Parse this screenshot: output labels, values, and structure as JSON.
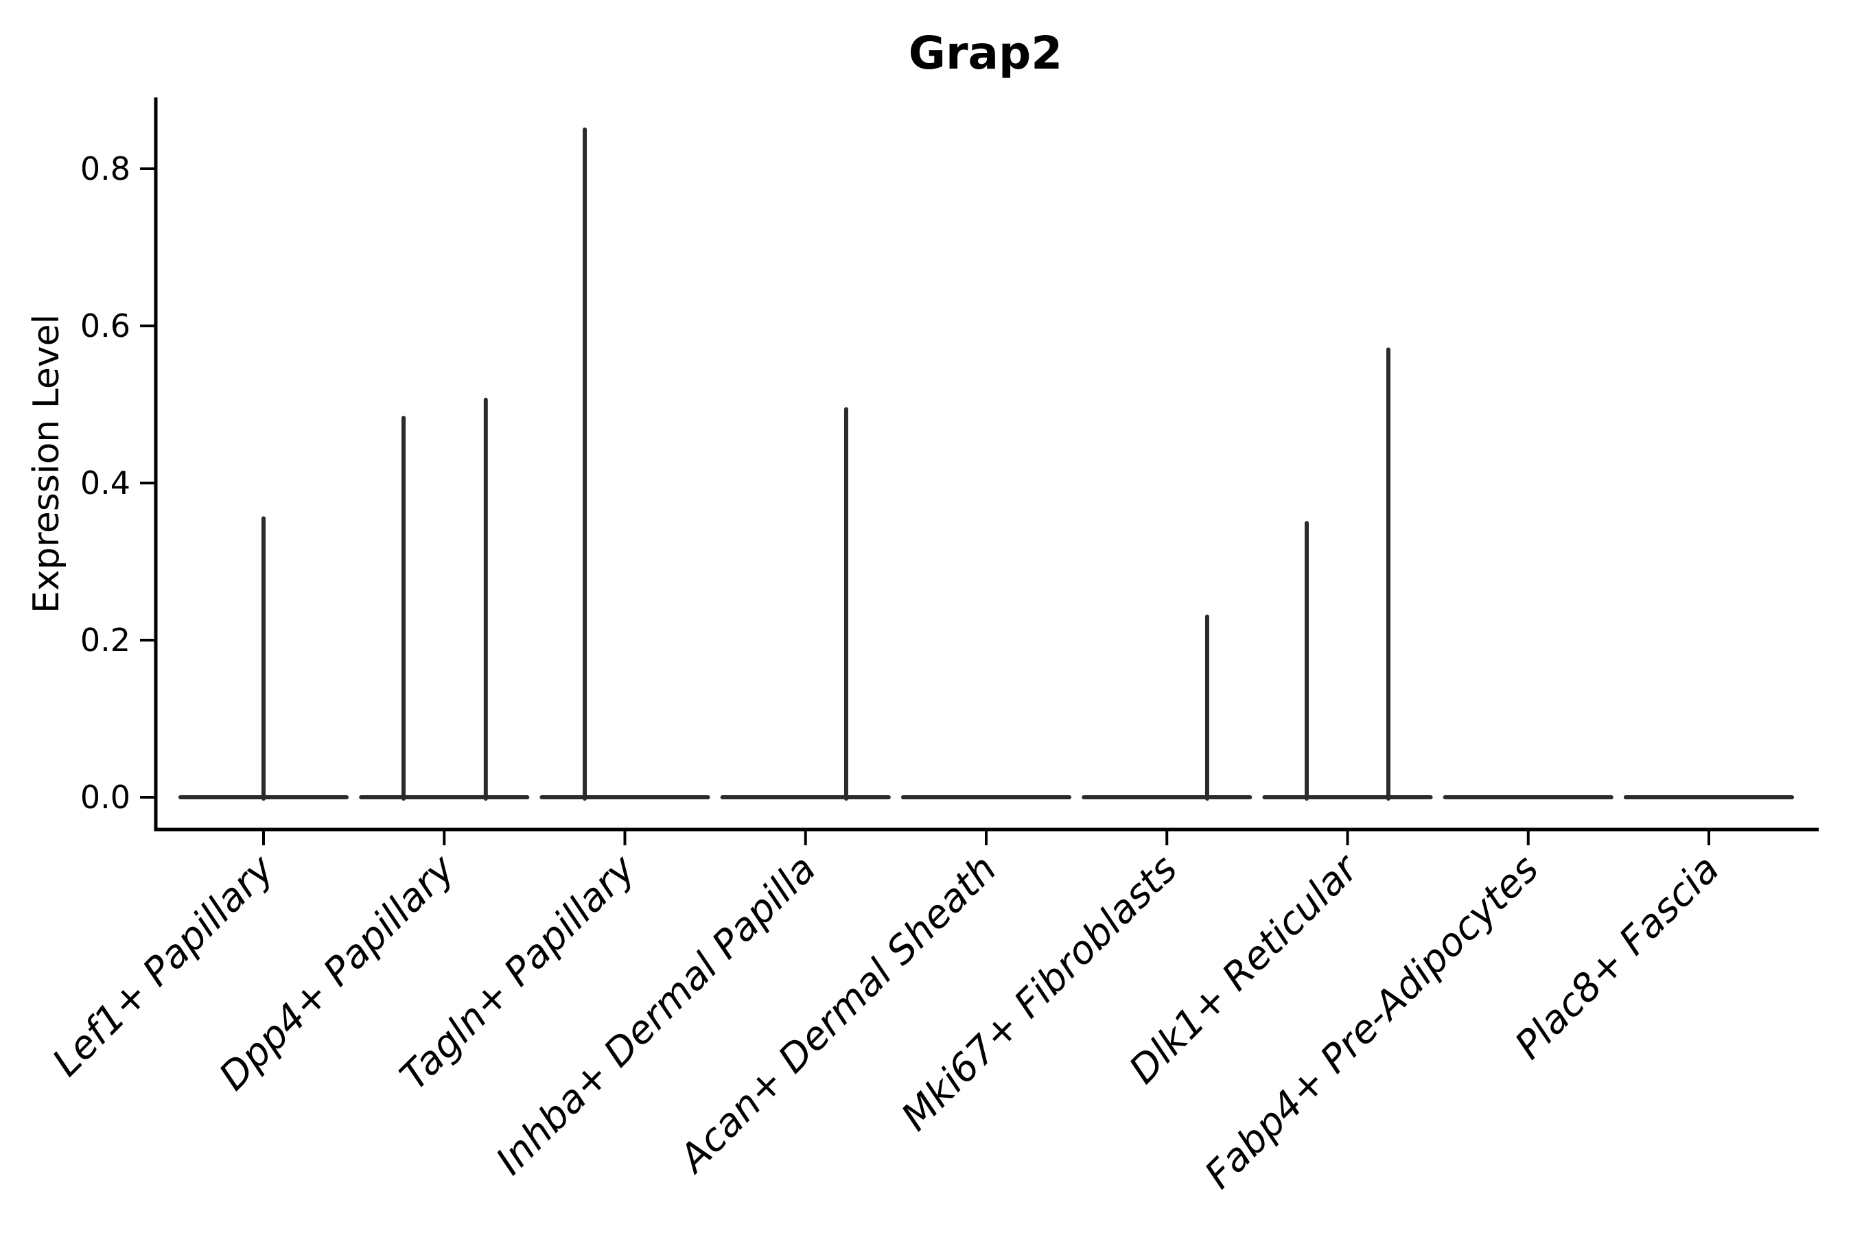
{
  "chart_data": {
    "type": "violin",
    "title": "Grap2",
    "ylabel": "Expression Level",
    "xlabel": "",
    "categories": [
      "Lef1+ Papillary",
      "Dpp4+ Papillary",
      "Tagln+ Papillary",
      "Inhba+ Dermal Papilla",
      "Acan+ Dermal Sheath",
      "Mki67+ Fibroblasts",
      "Dlk1+ Reticular",
      "Fabp4+ Pre-Adipocytes",
      "Plac8+ Fascia"
    ],
    "y_ticks": [
      {
        "label": "0.0",
        "value": 0.0
      },
      {
        "label": "0.2",
        "value": 0.2
      },
      {
        "label": "0.4",
        "value": 0.4
      },
      {
        "label": "0.6",
        "value": 0.6
      },
      {
        "label": "0.8",
        "value": 0.8
      }
    ],
    "ylim": [
      -0.04,
      0.89
    ],
    "grid": false,
    "legend": "none",
    "style": {
      "axis_color": "#000000",
      "violin_color": "#2b2b2b",
      "background": "#ffffff",
      "xtick_label_style": "italic",
      "xtick_label_rotation_deg": 45
    },
    "violins": [
      {
        "category": "Lef1+ Papillary",
        "baseline": 0.0,
        "half_width": 0.46,
        "spikes": [
          {
            "offset": 0.0,
            "peak": 0.355
          }
        ]
      },
      {
        "category": "Dpp4+ Papillary",
        "baseline": 0.0,
        "half_width": 0.46,
        "spikes": [
          {
            "offset": -0.225,
            "peak": 0.483
          },
          {
            "offset": 0.23,
            "peak": 0.506
          }
        ]
      },
      {
        "category": "Tagln+ Papillary",
        "baseline": 0.0,
        "half_width": 0.46,
        "spikes": [
          {
            "offset": -0.222,
            "peak": 0.85
          }
        ]
      },
      {
        "category": "Inhba+ Dermal Papilla",
        "baseline": 0.0,
        "half_width": 0.46,
        "spikes": [
          {
            "offset": 0.225,
            "peak": 0.494
          }
        ]
      },
      {
        "category": "Acan+ Dermal Sheath",
        "baseline": 0.0,
        "half_width": 0.46,
        "spikes": []
      },
      {
        "category": "Mki67+ Fibroblasts",
        "baseline": 0.0,
        "half_width": 0.46,
        "spikes": [
          {
            "offset": 0.223,
            "peak": 0.23
          }
        ]
      },
      {
        "category": "Dlk1+ Reticular",
        "baseline": 0.0,
        "half_width": 0.46,
        "spikes": [
          {
            "offset": -0.226,
            "peak": 0.349
          },
          {
            "offset": 0.226,
            "peak": 0.57
          }
        ]
      },
      {
        "category": "Fabp4+ Pre-Adipocytes",
        "baseline": 0.0,
        "half_width": 0.46,
        "spikes": []
      },
      {
        "category": "Plac8+ Fascia",
        "baseline": 0.0,
        "half_width": 0.46,
        "spikes": []
      }
    ]
  }
}
